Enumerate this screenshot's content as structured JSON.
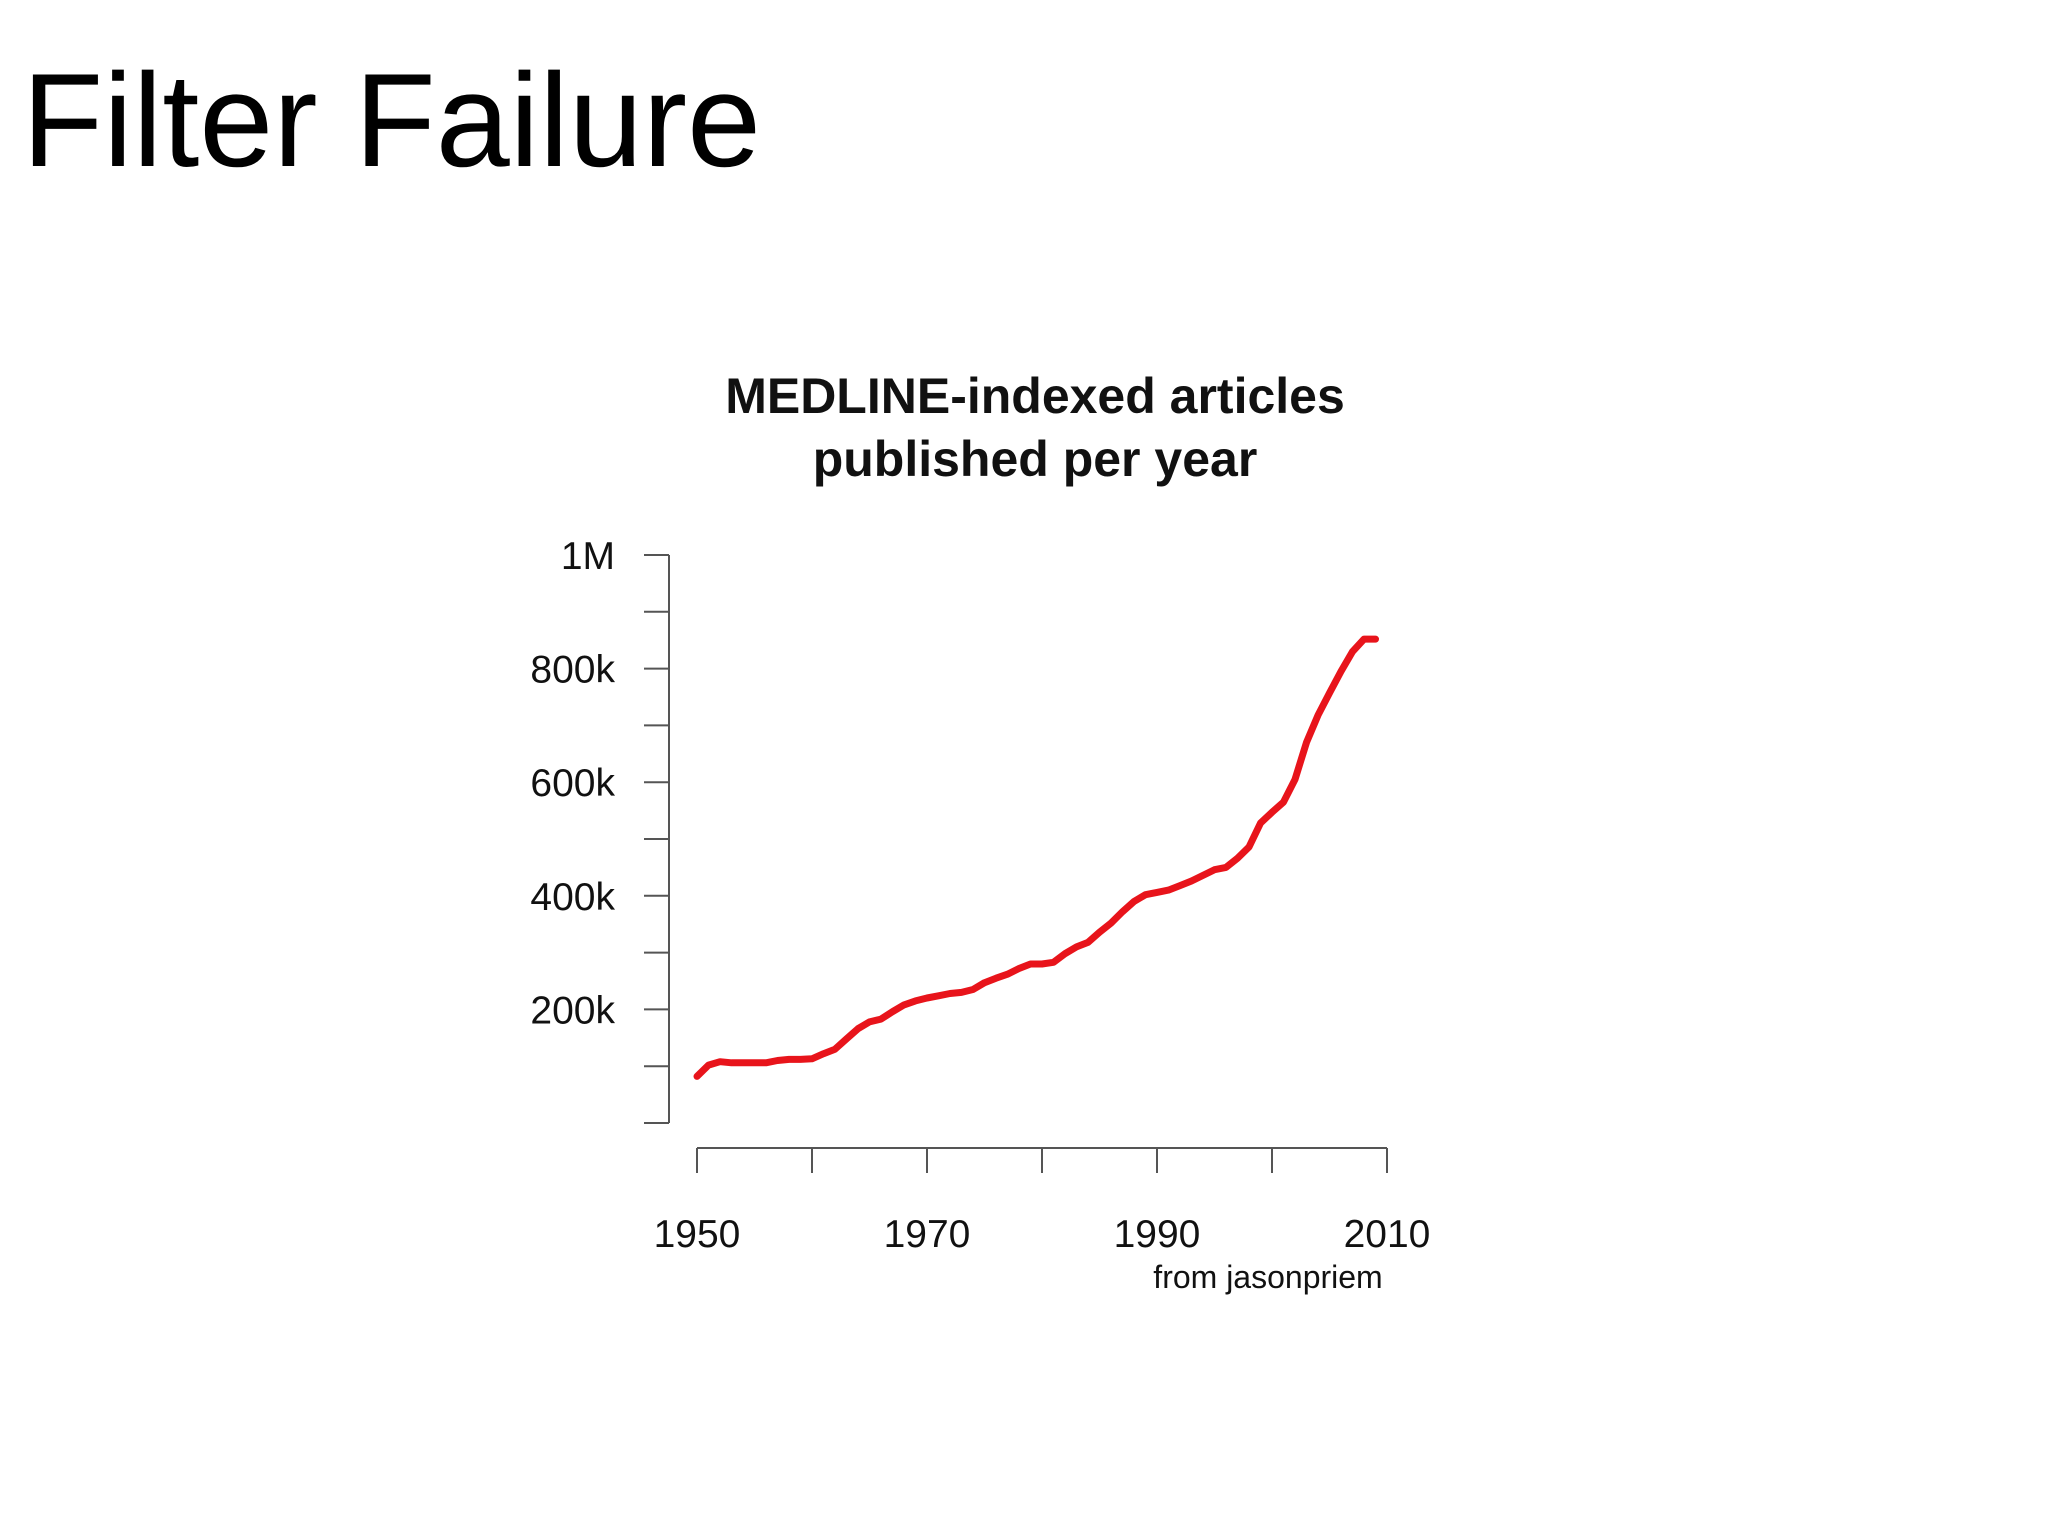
{
  "slide": {
    "title": "Filter Failure",
    "credit": "from jasonpriem"
  },
  "chart_data": {
    "type": "line",
    "title": [
      "MEDLINE-indexed articles",
      "published per year"
    ],
    "xlabel": "",
    "ylabel": "",
    "xlim": [
      1950,
      2010
    ],
    "ylim": [
      0,
      1000000
    ],
    "x_ticks": [
      1950,
      1960,
      1970,
      1980,
      1990,
      2000,
      2010
    ],
    "x_tick_labels": [
      {
        "value": 1950,
        "label": "1950"
      },
      {
        "value": 1970,
        "label": "1970"
      },
      {
        "value": 1990,
        "label": "1990"
      },
      {
        "value": 2010,
        "label": "2010"
      }
    ],
    "y_ticks": [
      0,
      100000,
      200000,
      300000,
      400000,
      500000,
      600000,
      700000,
      800000,
      900000,
      1000000
    ],
    "y_tick_labels": [
      {
        "value": 200000,
        "label": "200k"
      },
      {
        "value": 400000,
        "label": "400k"
      },
      {
        "value": 600000,
        "label": "600k"
      },
      {
        "value": 800000,
        "label": "800k"
      },
      {
        "value": 1000000,
        "label": "1M"
      }
    ],
    "grid": false,
    "series": [
      {
        "color": "#e8141b",
        "x": [
          1950,
          1951,
          1952,
          1953,
          1954,
          1955,
          1956,
          1957,
          1958,
          1959,
          1960,
          1961,
          1962,
          1963,
          1964,
          1965,
          1966,
          1967,
          1968,
          1969,
          1970,
          1971,
          1972,
          1973,
          1974,
          1975,
          1976,
          1977,
          1978,
          1979,
          1980,
          1981,
          1982,
          1983,
          1984,
          1985,
          1986,
          1987,
          1988,
          1989,
          1990,
          1991,
          1992,
          1993,
          1994,
          1995,
          1996,
          1997,
          1998,
          1999,
          2000,
          2001,
          2002,
          2003,
          2004,
          2005,
          2006,
          2007,
          2008,
          2009
        ],
        "y": [
          82000,
          102000,
          108000,
          106000,
          106000,
          106000,
          106000,
          110000,
          112000,
          112000,
          113000,
          122000,
          130000,
          148000,
          166000,
          178000,
          183000,
          196000,
          208000,
          215000,
          220000,
          224000,
          228000,
          230000,
          235000,
          247000,
          255000,
          262000,
          272000,
          280000,
          280000,
          283000,
          298000,
          310000,
          318000,
          336000,
          352000,
          372000,
          390000,
          402000,
          406000,
          410000,
          418000,
          426000,
          436000,
          446000,
          450000,
          466000,
          486000,
          528000,
          547000,
          565000,
          605000,
          670000,
          718000,
          757000,
          795000,
          830000,
          852000,
          852000
        ]
      }
    ]
  }
}
